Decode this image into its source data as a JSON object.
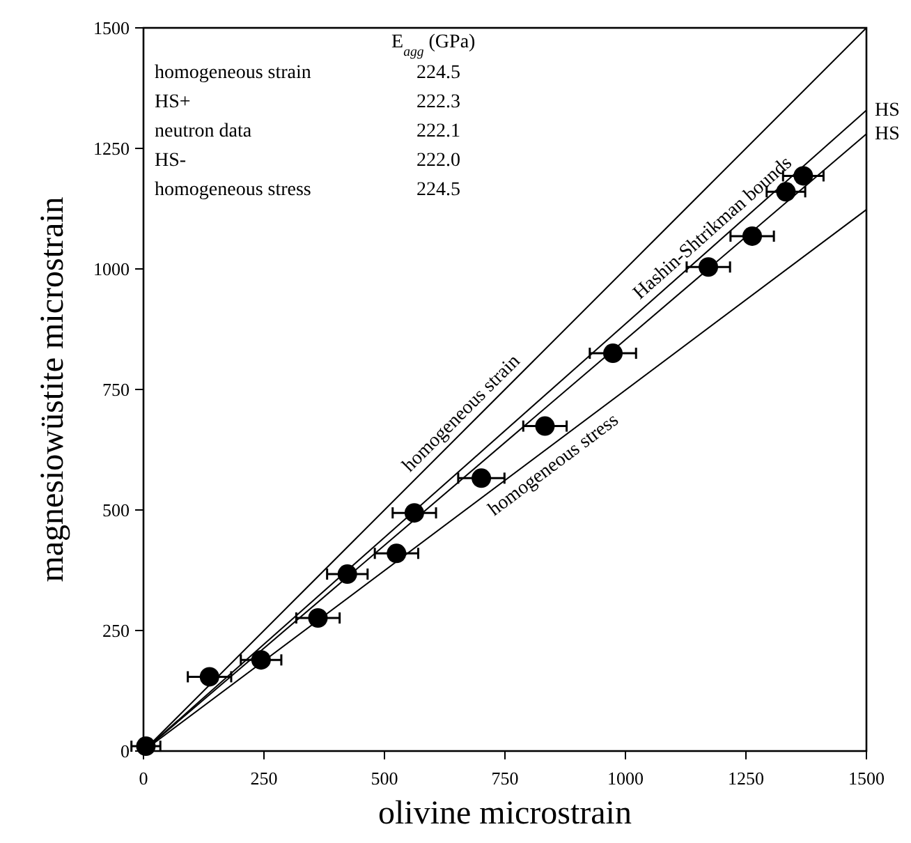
{
  "chart_data": {
    "type": "scatter",
    "xlabel": "olivine microstrain",
    "ylabel": "magnesiowüstite microstrain",
    "xlim": [
      0,
      1500
    ],
    "ylim": [
      0,
      1500
    ],
    "xticks": [
      0,
      250,
      500,
      750,
      1000,
      1250,
      1500
    ],
    "yticks": [
      0,
      250,
      500,
      750,
      1000,
      1250,
      1500
    ],
    "grid": false,
    "series": [
      {
        "color": "#000000",
        "marker": "circle",
        "x": [
          5,
          137,
          244,
          362,
          423,
          525,
          562,
          701,
          833,
          974,
          1172,
          1263,
          1333,
          1369
        ],
        "values": [
          10,
          154,
          189,
          276,
          367,
          410,
          494,
          566,
          674,
          825,
          1004,
          1068,
          1160,
          1193
        ],
        "xerrors": [
          30,
          45,
          42,
          45,
          42,
          45,
          45,
          48,
          45,
          48,
          45,
          45,
          40,
          42
        ]
      },
      {
        "type": "line",
        "color": "#000000",
        "x": [
          0,
          1500
        ],
        "values": [
          0,
          1500
        ],
        "marker": "none"
      },
      {
        "type": "line",
        "color": "#000000",
        "x": [
          0,
          1500
        ],
        "values": [
          0,
          1329
        ],
        "marker": "none"
      },
      {
        "type": "line",
        "color": "#000000",
        "x": [
          0,
          1500
        ],
        "values": [
          0,
          1280
        ],
        "marker": "none"
      },
      {
        "type": "line",
        "color": "#000000",
        "x": [
          0,
          1500
        ],
        "values": [
          0,
          1123
        ],
        "marker": "none"
      }
    ],
    "annotations": [
      "E$_{agg}$ (GPa)",
      "homogeneous strain",
      "224.5",
      "HS+",
      "222.3",
      "neutron data",
      "222.1",
      "HS-",
      "222.0",
      "homogeneous stress",
      "224.5",
      {
        "text": "homogeneous strain",
        "x": 680,
        "y": 680
      },
      {
        "text": "Hashin-Shtrikman bounds",
        "x": 1200,
        "y": 1063.2
      },
      {
        "text": "homogeneous stress",
        "x": 830,
        "y": 621.4
      },
      {
        "text": "HS",
        "x": 1500,
        "y": 1329
      },
      {
        "text": "HS",
        "x": 1500,
        "y": 1280
      }
    ]
  }
}
